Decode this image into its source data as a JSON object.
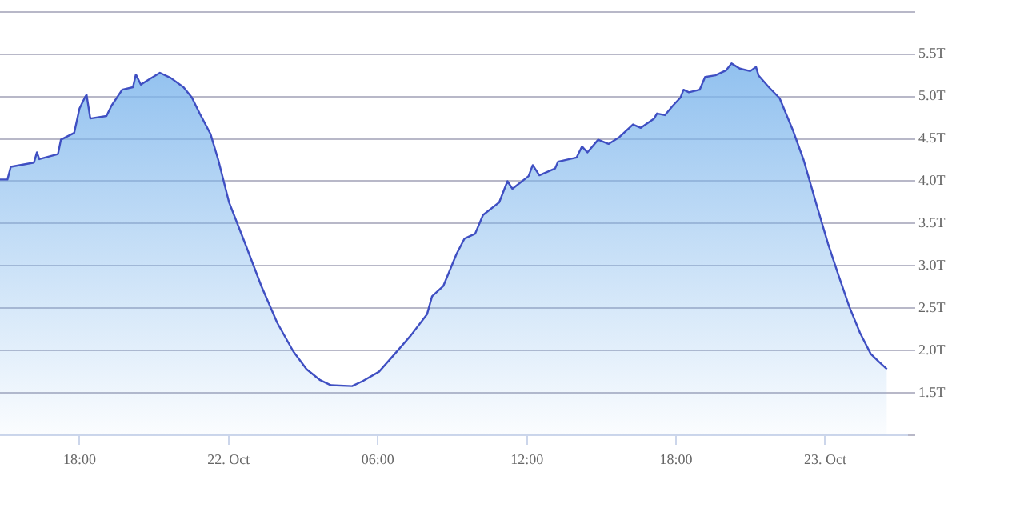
{
  "chart_data": {
    "type": "area",
    "x": [
      "--10-21T14:48",
      "--10-21T15:06",
      "--10-21T15:14",
      "--10-21T16:10",
      "--10-21T16:17",
      "--10-21T16:23",
      "--10-21T17:08",
      "--10-21T17:15",
      "--10-21T17:47",
      "--10-21T18:00",
      "--10-21T18:13",
      "--10-21T18:17",
      "--10-21T18:26",
      "--10-21T19:05",
      "--10-21T19:17",
      "--10-21T19:43",
      "--10-21T20:09",
      "--10-21T20:16",
      "--10-21T20:28",
      "--10-21T20:47",
      "--10-21T21:14",
      "--10-21T21:40",
      "--10-21T22:11",
      "--10-21T22:31",
      "--10-21T22:50",
      "--10-21T23:16",
      "--10-21T23:35",
      "--10-22T00:01",
      "--10-22T00:40",
      "--10-22T01:19",
      "--10-22T01:57",
      "--10-22T02:36",
      "--10-22T03:08",
      "--10-22T03:41",
      "--10-22T04:07",
      "--10-22T04:58",
      "--10-22T05:24",
      "--10-22T06:03",
      "--10-22T06:41",
      "--10-22T07:20",
      "--10-22T07:59",
      "--10-22T08:11",
      "--10-22T08:38",
      "--10-22T09:10",
      "--10-22T09:29",
      "--10-22T09:55",
      "--10-22T10:14",
      "--10-22T10:53",
      "--10-22T11:13",
      "--10-22T11:25",
      "--10-22T12:04",
      "--10-22T12:14",
      "--10-22T12:30",
      "--10-22T13:08",
      "--10-22T13:15",
      "--10-22T14:00",
      "--10-22T14:13",
      "--10-22T14:26",
      "--10-22T14:52",
      "--10-22T15:17",
      "--10-22T15:43",
      "--10-22T16:16",
      "--10-22T16:35",
      "--10-22T17:07",
      "--10-22T17:14",
      "--10-22T17:33",
      "--10-22T17:52",
      "--10-22T18:11",
      "--10-22T18:18",
      "--10-22T18:31",
      "--10-22T18:57",
      "--10-22T19:10",
      "--10-22T19:35",
      "--10-22T20:01",
      "--10-22T20:14",
      "--10-22T20:34",
      "--10-22T20:59",
      "--10-22T21:13",
      "--10-22T21:19",
      "--10-22T21:44",
      "--10-22T22:10",
      "--10-22T22:43",
      "--10-22T23:08",
      "--10-22T23:41",
      "--10-23T00:07",
      "--10-23T00:32",
      "--10-23T00:58",
      "--10-23T01:24",
      "--10-23T01:50",
      "--10-23T02:09",
      "--10-23T02:29"
    ],
    "series": [
      {
        "color": "#3f4fc2",
        "values": [
          4.02,
          4.02,
          4.17,
          4.22,
          4.34,
          4.26,
          4.32,
          4.49,
          4.57,
          4.86,
          4.99,
          5.02,
          4.74,
          4.77,
          4.89,
          5.08,
          5.11,
          5.26,
          5.14,
          5.2,
          5.28,
          5.22,
          5.11,
          4.99,
          4.8,
          4.56,
          4.25,
          3.75,
          3.26,
          2.76,
          2.33,
          1.99,
          1.78,
          1.65,
          1.59,
          1.58,
          1.64,
          1.75,
          1.96,
          2.18,
          2.43,
          2.64,
          2.76,
          3.14,
          3.32,
          3.38,
          3.6,
          3.75,
          4.0,
          3.91,
          4.06,
          4.19,
          4.07,
          4.15,
          4.23,
          4.28,
          4.41,
          4.34,
          4.49,
          4.44,
          4.52,
          4.67,
          4.63,
          4.74,
          4.8,
          4.78,
          4.89,
          4.99,
          5.08,
          5.05,
          5.08,
          5.23,
          5.25,
          5.31,
          5.39,
          5.33,
          5.3,
          5.35,
          5.25,
          5.11,
          4.98,
          4.59,
          4.25,
          3.69,
          3.26,
          2.89,
          2.52,
          2.21,
          1.96,
          1.87,
          1.78
        ]
      }
    ],
    "xlim": [
      "--10-21T14:48",
      "--10-23T03:18"
    ],
    "xticks": [
      {
        "value": "--10-21T18:00",
        "label": "18:00"
      },
      {
        "value": "--10-22T00:00",
        "label": "22. Oct"
      },
      {
        "value": "--10-22T06:00",
        "label": "06:00"
      },
      {
        "value": "--10-22T12:00",
        "label": "12:00"
      },
      {
        "value": "--10-22T18:00",
        "label": "18:00"
      },
      {
        "value": "--10-23T00:00",
        "label": "23. Oct"
      }
    ],
    "ylim": [
      1,
      6
    ],
    "yticks": [
      {
        "value": 1,
        "label": null
      },
      {
        "value": 1.5,
        "label": "1.5T"
      },
      {
        "value": 2,
        "label": "2.0T"
      },
      {
        "value": 2.5,
        "label": "2.5T"
      },
      {
        "value": 3,
        "label": "3.0T"
      },
      {
        "value": 3.5,
        "label": "3.5T"
      },
      {
        "value": 4,
        "label": "4.0T"
      },
      {
        "value": 4.5,
        "label": "4.5T"
      },
      {
        "value": 5,
        "label": "5.0T"
      },
      {
        "value": 5.5,
        "label": "5.5T"
      },
      {
        "value": 6,
        "label": null
      }
    ],
    "grid": "y",
    "legend": false,
    "marker": "none",
    "line_style": "solid"
  }
}
